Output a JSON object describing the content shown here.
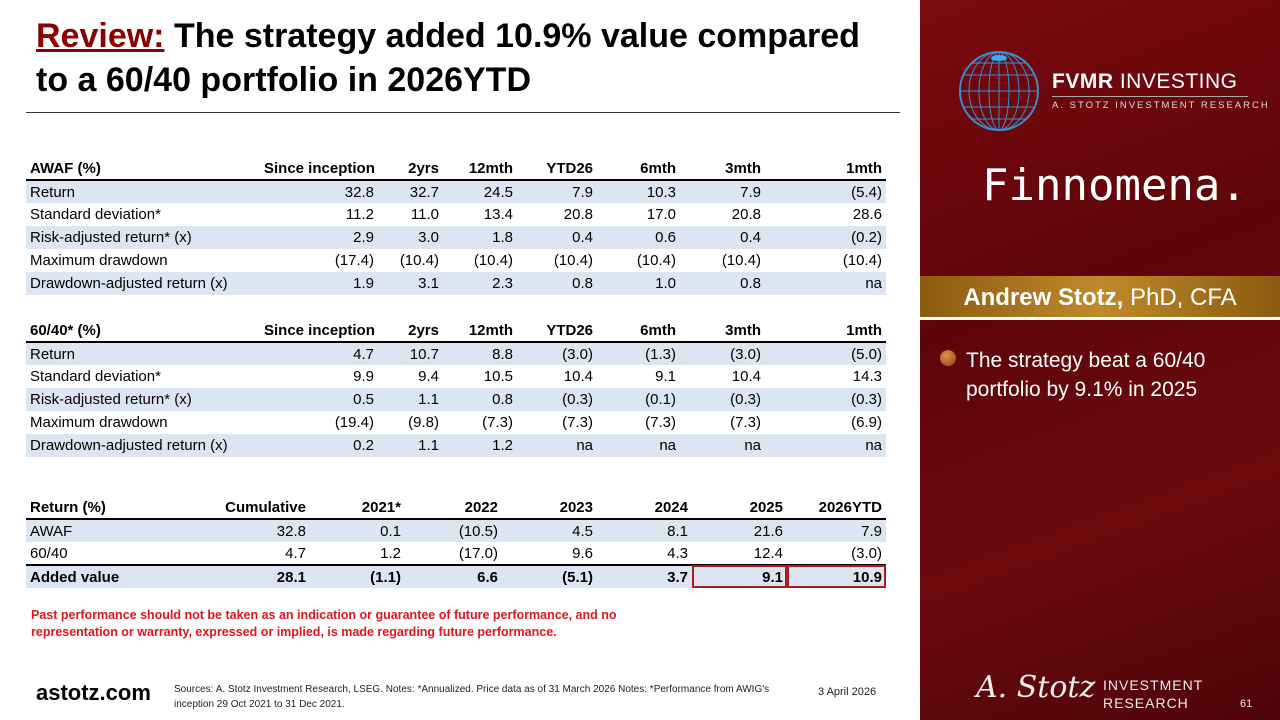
{
  "title": {
    "prefix": "Review:",
    "text": " The strategy added 10.9% value compared to a 60/40 portfolio in 2026YTD"
  },
  "awaf_table": {
    "headers": [
      "AWAF (%)",
      "Since inception",
      "2yrs",
      "12mth",
      "YTD26",
      "6mth",
      "3mth",
      "1mth"
    ],
    "rows": [
      [
        "Return",
        "32.8",
        "32.7",
        "24.5",
        "7.9",
        "10.3",
        "7.9",
        "(5.4)"
      ],
      [
        "Standard deviation*",
        "11.2",
        "11.0",
        "13.4",
        "20.8",
        "17.0",
        "20.8",
        "28.6"
      ],
      [
        "Risk-adjusted return* (x)",
        "2.9",
        "3.0",
        "1.8",
        "0.4",
        "0.6",
        "0.4",
        "(0.2)"
      ],
      [
        "Maximum drawdown",
        "(17.4)",
        "(10.4)",
        "(10.4)",
        "(10.4)",
        "(10.4)",
        "(10.4)",
        "(10.4)"
      ],
      [
        "Drawdown-adjusted return (x)",
        "1.9",
        "3.1",
        "2.3",
        "0.8",
        "1.0",
        "0.8",
        "na"
      ]
    ]
  },
  "sixty_forty_table": {
    "headers": [
      "60/40* (%)",
      "Since inception",
      "2yrs",
      "12mth",
      "YTD26",
      "6mth",
      "3mth",
      "1mth"
    ],
    "rows": [
      [
        "Return",
        "4.7",
        "10.7",
        "8.8",
        "(3.0)",
        "(1.3)",
        "(3.0)",
        "(5.0)"
      ],
      [
        "Standard deviation*",
        "9.9",
        "9.4",
        "10.5",
        "10.4",
        "9.1",
        "10.4",
        "14.3"
      ],
      [
        "Risk-adjusted return* (x)",
        "0.5",
        "1.1",
        "0.8",
        "(0.3)",
        "(0.1)",
        "(0.3)",
        "(0.3)"
      ],
      [
        "Maximum drawdown",
        "(19.4)",
        "(9.8)",
        "(7.3)",
        "(7.3)",
        "(7.3)",
        "(7.3)",
        "(6.9)"
      ],
      [
        "Drawdown-adjusted return (x)",
        "0.2",
        "1.1",
        "1.2",
        "na",
        "na",
        "na",
        "na"
      ]
    ]
  },
  "return_table": {
    "headers": [
      "Return (%)",
      "Cumulative",
      "2021*",
      "2022",
      "2023",
      "2024",
      "2025",
      "2026YTD"
    ],
    "rows": [
      [
        "AWAF",
        "32.8",
        "0.1",
        "(10.5)",
        "4.5",
        "8.1",
        "21.6",
        "7.9"
      ],
      [
        "60/40",
        "4.7",
        "1.2",
        "(17.0)",
        "9.6",
        "4.3",
        "12.4",
        "(3.0)"
      ],
      [
        "Added value",
        "28.1",
        "(1.1)",
        "6.6",
        "(5.1)",
        "3.7",
        "9.1",
        "10.9"
      ]
    ]
  },
  "disclaimer": "Past performance should not be taken as an indication or guarantee of future performance, and no representation or warranty, expressed or implied, is made regarding future performance.",
  "footer": {
    "site": "astotz.com",
    "sources": "Sources: A. Stotz Investment Research, LSEG. Notes: *Annualized. Price data as of 31 March 2026 Notes: *Performance from AWIG's inception 29 Oct 2021 to 31 Dec 2021.",
    "date": "3 April 2026",
    "page": "61"
  },
  "sidebar": {
    "fvmr_bold": "FVMR",
    "fvmr_rest": " INVESTING",
    "fvmr_sub": "A. STOTZ INVESTMENT RESEARCH",
    "finnomena": "Finnomena.",
    "presenter_name": "Andrew Stotz,",
    "presenter_creds": " PhD, CFA",
    "bullet": "The strategy beat a 60/40 portfolio by 9.1% in 2025",
    "signature": "A. Stotz",
    "ir_line1": "INVESTMENT",
    "ir_line2": "RESEARCH"
  },
  "colors": {
    "accent": "#8b0000",
    "row_band": "#dce6f2",
    "highlight": "#b01c1c",
    "warning": "#e0161b"
  }
}
